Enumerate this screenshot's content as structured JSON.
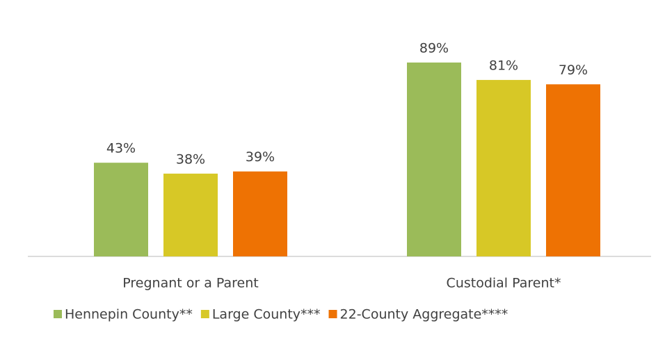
{
  "chart_data": {
    "type": "bar",
    "categories": [
      "Pregnant or a Parent",
      "Custodial Parent*"
    ],
    "series": [
      {
        "name": "Hennepin County**",
        "color": "#9bbb59",
        "values": [
          43,
          89
        ],
        "value_labels": [
          "43%",
          "89%"
        ]
      },
      {
        "name": "Large County***",
        "color": "#d7c826",
        "values": [
          38,
          81
        ],
        "value_labels": [
          "38%",
          "81%"
        ]
      },
      {
        "name": "22-County Aggregate****",
        "color": "#ee7203",
        "values": [
          39,
          79
        ],
        "value_labels": [
          "39%",
          "79%"
        ]
      }
    ],
    "legend": "bottom"
  }
}
